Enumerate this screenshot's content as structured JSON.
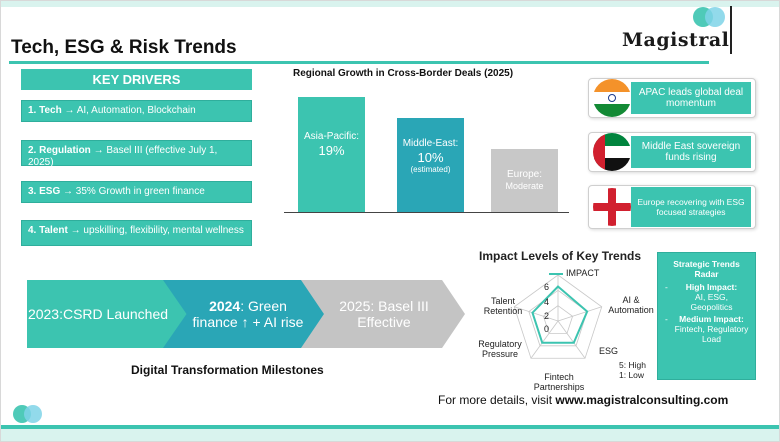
{
  "title": "Tech, ESG & Risk Trends",
  "logo": {
    "name": "Magistral"
  },
  "key_drivers": {
    "header": "KEY DRIVERS",
    "items": [
      {
        "lead": "1. Tech",
        "rest": " → AI, Automation, Blockchain"
      },
      {
        "lead": "2. Regulation",
        "rest": " → Basel III (effective  July 1, 2025)"
      },
      {
        "lead": "3. ESG",
        "rest": " →  35% Growth in green finance"
      },
      {
        "lead": "4. Talent",
        "rest": " → upskilling, flexibility, mental wellness"
      }
    ]
  },
  "chart_data": {
    "type": "bar",
    "title": "Regional Growth in Cross-Border Deals (2025)",
    "categories": [
      "Asia-Pacific:",
      "Middle-East:",
      "Europe:"
    ],
    "values": [
      19,
      10,
      null
    ],
    "value_labels": [
      "19%",
      "10%",
      "Moderate"
    ],
    "sub_labels": [
      "",
      "(estimated)",
      ""
    ],
    "colors": [
      "#3cc4b0",
      "#2aa6b6",
      "#c8c8c8"
    ]
  },
  "regions": [
    {
      "text": "APAC leads global deal momentum",
      "flag": "india-flag"
    },
    {
      "text": "Middle East sovereign funds rising",
      "flag": "uae-flag"
    },
    {
      "text": "Europe recovering with ESG focused strategies",
      "flag": "england-flag"
    }
  ],
  "radar": {
    "title": "Impact Levels of Key Trends",
    "series_name": "IMPACT",
    "axes": [
      "AI & Automation",
      "ESG",
      "Fintech Partnerships",
      "Regulatory Pressure",
      "Talent Retention"
    ],
    "values": [
      4.5,
      4,
      3.5,
      3.5,
      3.5
    ],
    "ticks": [
      "6",
      "4",
      "2",
      "0"
    ],
    "scale_note_high": "5: High",
    "scale_note_low": "1: Low"
  },
  "strategic": {
    "title": "Strategic Trends Radar",
    "high_label": "High Impact:",
    "high_items": "AI, ESG, Geopolitics",
    "medium_label": "Medium Impact:",
    "medium_items": "Fintech, Regulatory Load"
  },
  "milestones": {
    "m1": "2023:CSRD Launched",
    "m2_year": "2024",
    "m2_rest": ": Green finance ↑ + AI rise",
    "m3": "2025: Basel III Effective",
    "caption": "Digital Transformation Milestones"
  },
  "footer": {
    "prefix": "For more details, visit ",
    "url": "www.magistralconsulting.com"
  },
  "colors": {
    "teal": "#3cc4b0",
    "blue_teal": "#2aa6b6",
    "grey": "#c8c8c8"
  }
}
